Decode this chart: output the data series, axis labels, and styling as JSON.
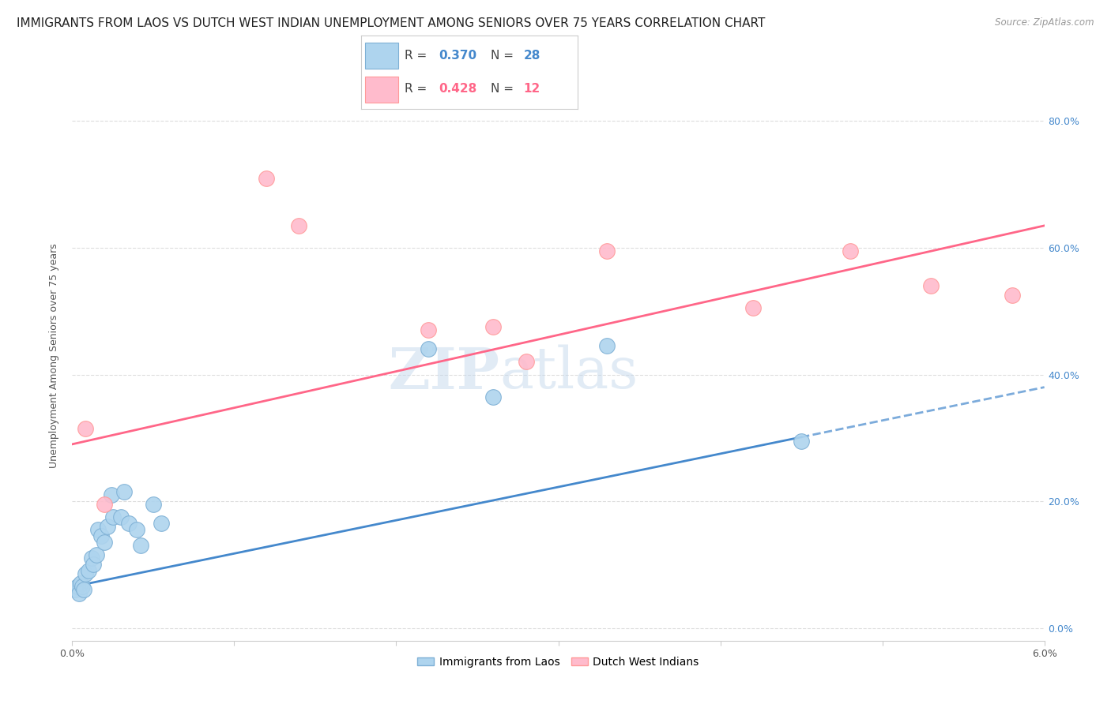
{
  "title": "IMMIGRANTS FROM LAOS VS DUTCH WEST INDIAN UNEMPLOYMENT AMONG SENIORS OVER 75 YEARS CORRELATION CHART",
  "source": "Source: ZipAtlas.com",
  "ylabel": "Unemployment Among Seniors over 75 years",
  "ylabel_ticks": [
    "0.0%",
    "20.0%",
    "40.0%",
    "60.0%",
    "80.0%"
  ],
  "ylabel_tick_vals": [
    0.0,
    0.2,
    0.4,
    0.6,
    0.8
  ],
  "xlim": [
    0.0,
    0.06
  ],
  "ylim": [
    -0.02,
    0.88
  ],
  "watermark_line1": "ZIP",
  "watermark_line2": "atlas",
  "laos_R": "0.370",
  "laos_N": "28",
  "dutch_R": "0.428",
  "dutch_N": "12",
  "laos_color": "#7EB0D5",
  "laos_color_fill": "#AED4EE",
  "dutch_color": "#FF9999",
  "dutch_color_fill": "#FFBBCC",
  "trendline_laos_color": "#4488CC",
  "trendline_dutch_color": "#FF6688",
  "laos_x": [
    0.0002,
    0.0003,
    0.0004,
    0.0005,
    0.0006,
    0.0007,
    0.0008,
    0.001,
    0.0012,
    0.0013,
    0.0015,
    0.0016,
    0.0018,
    0.002,
    0.0022,
    0.0024,
    0.0025,
    0.003,
    0.0032,
    0.0035,
    0.004,
    0.0042,
    0.005,
    0.0055,
    0.022,
    0.026,
    0.033,
    0.045
  ],
  "laos_y": [
    0.06,
    0.065,
    0.055,
    0.07,
    0.065,
    0.06,
    0.085,
    0.09,
    0.11,
    0.1,
    0.115,
    0.155,
    0.145,
    0.135,
    0.16,
    0.21,
    0.175,
    0.175,
    0.215,
    0.165,
    0.155,
    0.13,
    0.195,
    0.165,
    0.44,
    0.365,
    0.445,
    0.295
  ],
  "dutch_x": [
    0.0008,
    0.002,
    0.012,
    0.014,
    0.022,
    0.026,
    0.028,
    0.033,
    0.042,
    0.048,
    0.053,
    0.058
  ],
  "dutch_y": [
    0.315,
    0.195,
    0.71,
    0.635,
    0.47,
    0.475,
    0.42,
    0.595,
    0.505,
    0.595,
    0.54,
    0.525
  ],
  "background_color": "#FFFFFF",
  "grid_color": "#DDDDDD",
  "title_fontsize": 11,
  "axis_label_fontsize": 9,
  "tick_fontsize": 9,
  "legend_fontsize": 11,
  "laos_trend_x0": 0.0,
  "laos_trend_x1": 0.06,
  "dutch_trend_x0": 0.0,
  "dutch_trend_x1": 0.06,
  "laos_trend_y0": 0.065,
  "laos_trend_y1": 0.38,
  "dutch_trend_y0": 0.29,
  "dutch_trend_y1": 0.635
}
